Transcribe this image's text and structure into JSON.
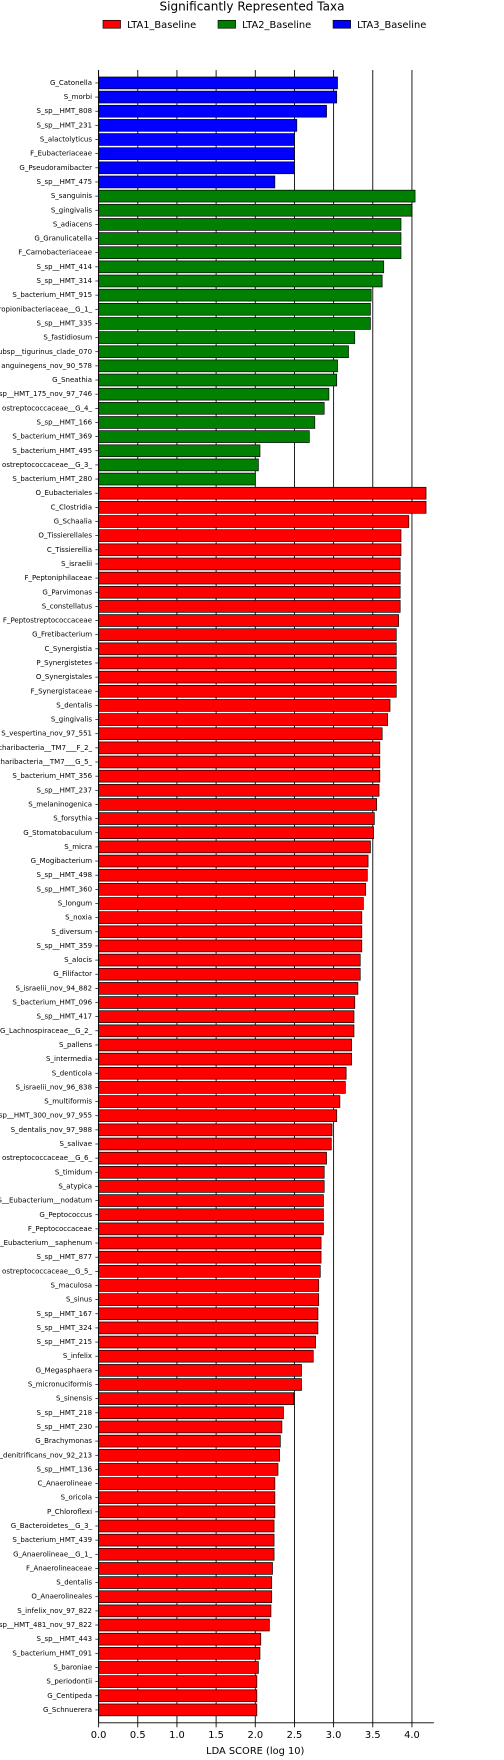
{
  "chart_data": {
    "type": "barh",
    "title": "Significantly Represented Taxa",
    "xlabel": "LDA SCORE (log 10)",
    "categories": [
      "G_Catonella",
      "S_morbi",
      "S_sp__HMT_808",
      "S_sp__HMT_231",
      "S_alactolyticus",
      "F_Eubacteriaceae",
      "G_Pseudoramibacter",
      "S_sp__HMT_475",
      "S_sanguinis",
      "S_gingivalis",
      "S_adiacens",
      "G_Granulicatella",
      "F_Carnobacteriaceae",
      "S_sp__HMT_414",
      "S_sp__HMT_314",
      "S_bacterium_HMT_915",
      "ropionibacteriaceae__G_1_",
      "S_sp__HMT_335",
      "S_fastidiosum",
      "ubsp__tigurinus_clade_070",
      "anguinegens_nov_90_578",
      "G_Sneathia",
      "sp__HMT_175_nov_97_746",
      "ostreptococcaceae__G_4_",
      "S_sp__HMT_166",
      "S_bacterium_HMT_369",
      "S_bacterium_HMT_495",
      "ostreptococcaceae__G_3_",
      "S_bacterium_HMT_280",
      "O_Eubacteriales",
      "C_Clostridia",
      "G_Schaalia",
      "O_Tissierellales",
      "C_Tissierellia",
      "S_israelii",
      "F_Peptoniphilaceae",
      "G_Parvimonas",
      "S_constellatus",
      "F_Peptostreptococcaceae",
      "G_Fretibacterium",
      "C_Synergistia",
      "P_Synergistetes",
      "O_Synergistales",
      "F_Synergistaceae",
      "S_dentalis",
      "S_gingivalis",
      "S_vespertina_nov_97_551",
      "charibacteria__TM7___F_2_",
      "charibacteria__TM7___G_5_",
      "S_bacterium_HMT_356",
      "S_sp__HMT_237",
      "S_melaninogenica",
      "S_forsythia",
      "G_Stomatobaculum",
      "S_micra",
      "G_Mogibacterium",
      "S_sp__HMT_498",
      "S_sp__HMT_360",
      "S_longum",
      "S_noxia",
      "S_diversum",
      "S_sp__HMT_359",
      "S_alocis",
      "G_Filifactor",
      "S_israelii_nov_94_882",
      "S_bacterium_HMT_096",
      "S_sp__HMT_417",
      "G_Lachnospiraceae__G_2_",
      "S_pallens",
      "S_intermedia",
      "S_denticola",
      "S_israelii_nov_96_838",
      "S_multiformis",
      "sp__HMT_300_nov_97_955",
      "S_dentalis_nov_97_988",
      "S_salivae",
      "ostreptococcaceae__G_6_",
      "S_timidum",
      "S_atypica",
      "S__Eubacterium__nodatum",
      "G_Peptococcus",
      "F_Peptococcaceae",
      "_Eubacterium__saphenum",
      "S_sp__HMT_877",
      "ostreptococcaceae__G_5_",
      "S_maculosa",
      "S_sinus",
      "S_sp__HMT_167",
      "S_sp__HMT_324",
      "S_sp__HMT_215",
      "S_infelix",
      "G_Megasphaera",
      "S_micronuciformis",
      "S_sinensis",
      "S_sp__HMT_218",
      "S_sp__HMT_230",
      "G_Brachymonas",
      "_denitrificans_nov_92_213",
      "S_sp__HMT_136",
      "C_Anaerolineae",
      "S_oricola",
      "P_Chloroflexi",
      "G_Bacteroidetes__G_3_",
      "S_bacterium_HMT_439",
      "G_Anaerolineae__G_1_",
      "F_Anaerolineaceae",
      "S_dentalis",
      "O_Anaerolineales",
      "S_infelix_nov_97_822",
      "sp__HMT_481_nov_97_822",
      "S_sp__HMT_443",
      "S_bacterium_HMT_091",
      "S_baroniae",
      "S_periodontii",
      "G_Centipeda",
      "G_Schnuerera"
    ],
    "series": [
      {
        "name": "LTA1_Baseline",
        "color": "#ff0000",
        "values": [
          null,
          null,
          null,
          null,
          null,
          null,
          null,
          null,
          null,
          null,
          null,
          null,
          null,
          null,
          null,
          null,
          null,
          null,
          null,
          null,
          null,
          null,
          null,
          null,
          null,
          null,
          null,
          null,
          null,
          4.18,
          4.18,
          3.96,
          3.86,
          3.86,
          3.85,
          3.85,
          3.85,
          3.85,
          3.83,
          3.8,
          3.8,
          3.8,
          3.8,
          3.8,
          3.72,
          3.69,
          3.62,
          3.59,
          3.59,
          3.59,
          3.58,
          3.55,
          3.52,
          3.51,
          3.47,
          3.44,
          3.43,
          3.41,
          3.38,
          3.36,
          3.36,
          3.36,
          3.34,
          3.34,
          3.31,
          3.27,
          3.26,
          3.26,
          3.23,
          3.23,
          3.16,
          3.15,
          3.08,
          3.04,
          2.98,
          2.97,
          2.91,
          2.88,
          2.88,
          2.87,
          2.87,
          2.87,
          2.84,
          2.84,
          2.83,
          2.81,
          2.81,
          2.8,
          2.8,
          2.77,
          2.74,
          2.59,
          2.59,
          2.49,
          2.36,
          2.34,
          2.32,
          2.31,
          2.29,
          2.25,
          2.25,
          2.25,
          2.24,
          2.24,
          2.24,
          2.22,
          2.21,
          2.21,
          2.2,
          2.18,
          2.07,
          2.06,
          2.04,
          2.02,
          2.02,
          2.02
        ]
      },
      {
        "name": "LTA2_Baseline",
        "color": "#008000",
        "values": [
          null,
          null,
          null,
          null,
          null,
          null,
          null,
          null,
          4.04,
          4.0,
          3.86,
          3.86,
          3.86,
          3.64,
          3.62,
          3.48,
          3.47,
          3.47,
          3.27,
          3.19,
          3.05,
          3.04,
          2.94,
          2.88,
          2.76,
          2.69,
          2.06,
          2.04,
          2.0,
          null,
          null,
          null,
          null,
          null,
          null,
          null,
          null,
          null,
          null,
          null,
          null,
          null,
          null,
          null,
          null,
          null,
          null,
          null,
          null,
          null,
          null,
          null,
          null,
          null,
          null,
          null,
          null,
          null,
          null,
          null,
          null,
          null,
          null,
          null,
          null,
          null,
          null,
          null,
          null,
          null,
          null,
          null,
          null,
          null,
          null,
          null,
          null,
          null,
          null,
          null,
          null,
          null,
          null,
          null,
          null,
          null,
          null,
          null,
          null,
          null,
          null,
          null,
          null,
          null,
          null,
          null,
          null,
          null,
          null,
          null,
          null,
          null,
          null,
          null,
          null,
          null,
          null,
          null,
          null,
          null,
          null,
          null,
          null,
          null,
          null,
          null
        ]
      },
      {
        "name": "LTA3_Baseline",
        "color": "#0000ff",
        "values": [
          3.05,
          3.04,
          2.91,
          2.53,
          2.5,
          2.5,
          2.5,
          2.25,
          null,
          null,
          null,
          null,
          null,
          null,
          null,
          null,
          null,
          null,
          null,
          null,
          null,
          null,
          null,
          null,
          null,
          null,
          null,
          null,
          null,
          null,
          null,
          null,
          null,
          null,
          null,
          null,
          null,
          null,
          null,
          null,
          null,
          null,
          null,
          null,
          null,
          null,
          null,
          null,
          null,
          null,
          null,
          null,
          null,
          null,
          null,
          null,
          null,
          null,
          null,
          null,
          null,
          null,
          null,
          null,
          null,
          null,
          null,
          null,
          null,
          null,
          null,
          null,
          null,
          null,
          null,
          null,
          null,
          null,
          null,
          null,
          null,
          null,
          null,
          null,
          null,
          null,
          null,
          null,
          null,
          null,
          null,
          null,
          null,
          null,
          null,
          null,
          null,
          null,
          null,
          null,
          null,
          null,
          null,
          null,
          null,
          null,
          null,
          null,
          null,
          null,
          null,
          null,
          null,
          null,
          null,
          null
        ]
      }
    ],
    "xlim": [
      0,
      4.28
    ],
    "xticks": [
      {
        "value": 0,
        "label": "0.0"
      },
      0.5,
      {
        "value": 1,
        "label": "1.0"
      },
      1.5,
      {
        "value": 2,
        "label": "2.0"
      },
      2.5,
      {
        "value": 3,
        "label": "3.0"
      },
      3.5,
      {
        "value": 4,
        "label": "4.0"
      }
    ],
    "grid": true,
    "legend": "top"
  }
}
